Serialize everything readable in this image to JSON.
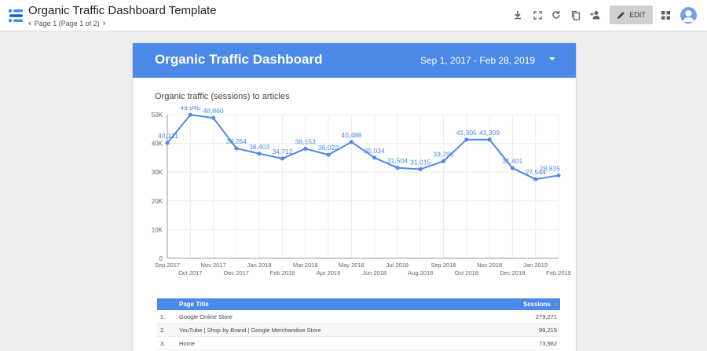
{
  "app": {
    "doc_title": "Organic Traffic Dashboard Template",
    "page_indicator": "Page 1 (Page 1 of 2)",
    "edit_label": "EDIT",
    "toolbar_icons": [
      "download-icon",
      "fullscreen-icon",
      "refresh-icon",
      "copy-icon",
      "share-icon",
      "apps-icon"
    ]
  },
  "report": {
    "title": "Organic Traffic Dashboard",
    "date_range": "Sep 1, 2017 - Feb 28, 2019",
    "header_color": "#4a89e8"
  },
  "chart_data": {
    "type": "line",
    "title": "Organic traffic (sessions) to articles",
    "x": [
      "Sep 2017",
      "Oct 2017",
      "Nov 2017",
      "Dec 2017",
      "Jan 2018",
      "Feb 2018",
      "Mar 2018",
      "Apr 2018",
      "May 2018",
      "Jun 2018",
      "Jul 2018",
      "Aug 2018",
      "Sep 2018",
      "Oct 2018",
      "Nov 2018",
      "Dec 2018",
      "Jan 2019",
      "Feb 2019"
    ],
    "values": [
      40131,
      49945,
      48860,
      38264,
      36403,
      34712,
      38153,
      36022,
      40488,
      35034,
      31504,
      31015,
      33795,
      41305,
      41309,
      31401,
      27544,
      28835
    ],
    "data_labels": [
      "40,131",
      "49,945",
      "48,860",
      "38,264",
      "36,403",
      "34,712",
      "38,153",
      "36,022",
      "40,488",
      "35,034",
      "31,504",
      "31,015",
      "33,795",
      "41,305",
      "41,309",
      "31,401",
      "27,544",
      "28,835"
    ],
    "y_ticks": [
      "0",
      "10K",
      "20K",
      "30K",
      "40K",
      "50K"
    ],
    "ylim": [
      0,
      50000
    ],
    "grid": true,
    "color": "#4a89e8"
  },
  "table": {
    "headers": {
      "title": "Page Title",
      "sessions": "Sessions"
    },
    "sort_glyph": "↓",
    "rows": [
      {
        "num": "1.",
        "title": "Google Online Store",
        "sessions": "279,271"
      },
      {
        "num": "2.",
        "title": "YouTube | Shop by Brand | Google Merchandise Store",
        "sessions": "99,215"
      },
      {
        "num": "3.",
        "title": "Home",
        "sessions": "73,562"
      }
    ]
  }
}
